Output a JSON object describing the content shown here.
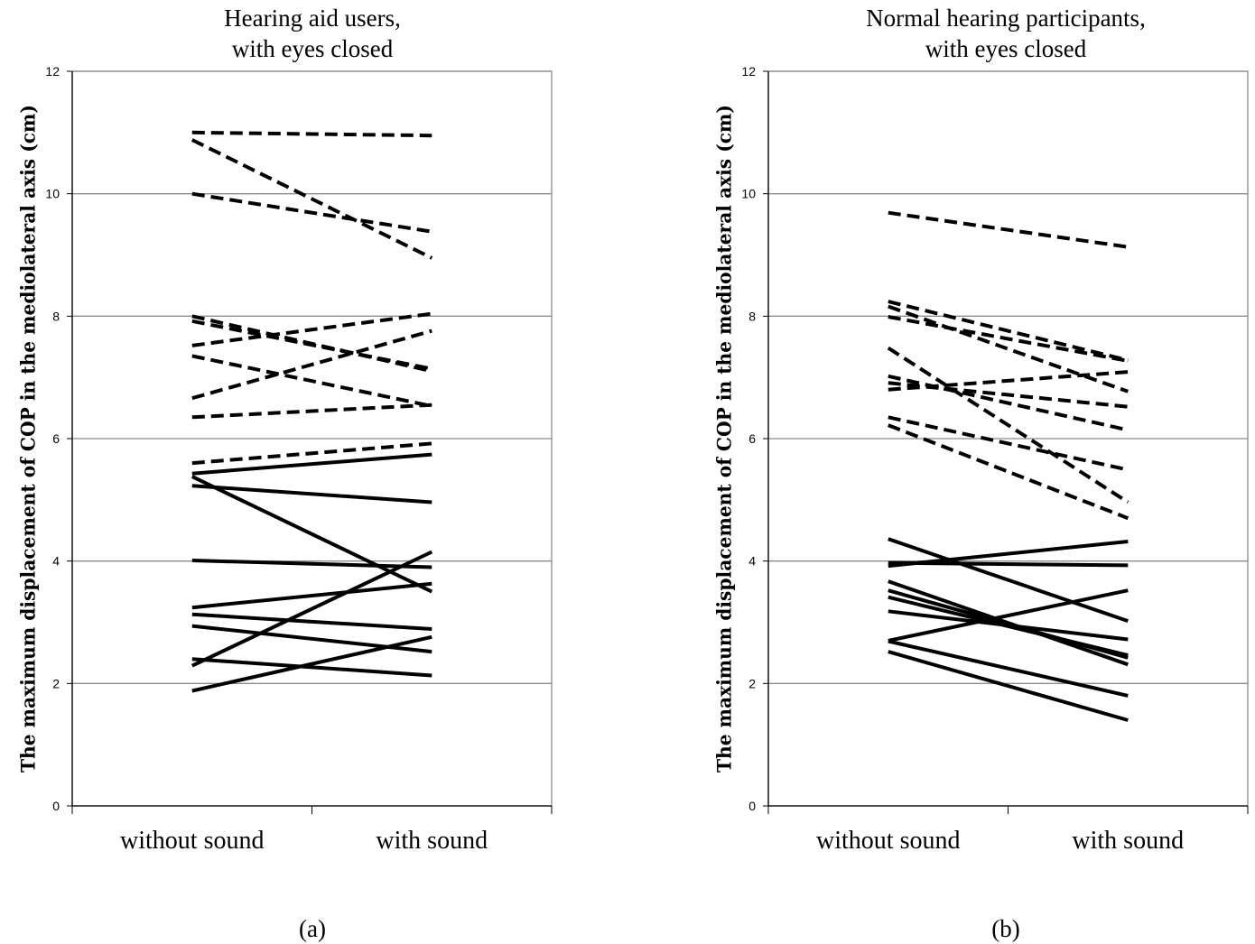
{
  "chart_data": [
    {
      "type": "line",
      "title": "Hearing aid users,\nwith eyes closed",
      "ylabel": "The maximum displacement of COP in the mediolateral axis (cm)",
      "xlabel": "",
      "categories": [
        "without sound",
        "with sound"
      ],
      "ylim": [
        0,
        12
      ],
      "yticks": [
        0,
        2,
        4,
        6,
        8,
        10,
        12
      ],
      "grid": true,
      "caption": "(a)",
      "series": [
        {
          "style": "dashed",
          "values": [
            11.0,
            10.95
          ]
        },
        {
          "style": "dashed",
          "values": [
            10.88,
            8.95
          ]
        },
        {
          "style": "dashed",
          "values": [
            10.0,
            9.38
          ]
        },
        {
          "style": "dashed",
          "values": [
            8.0,
            7.1
          ]
        },
        {
          "style": "dashed",
          "values": [
            7.92,
            7.14
          ]
        },
        {
          "style": "dashed",
          "values": [
            7.52,
            8.04
          ]
        },
        {
          "style": "dashed",
          "values": [
            7.35,
            6.53
          ]
        },
        {
          "style": "dashed",
          "values": [
            6.66,
            7.76
          ]
        },
        {
          "style": "dashed",
          "values": [
            6.35,
            6.55
          ]
        },
        {
          "style": "dashed",
          "values": [
            5.6,
            5.92
          ]
        },
        {
          "style": "solid",
          "values": [
            5.43,
            5.74
          ]
        },
        {
          "style": "solid",
          "values": [
            5.38,
            3.5
          ]
        },
        {
          "style": "solid",
          "values": [
            5.23,
            4.96
          ]
        },
        {
          "style": "solid",
          "values": [
            4.01,
            3.9
          ]
        },
        {
          "style": "solid",
          "values": [
            3.24,
            3.63
          ]
        },
        {
          "style": "solid",
          "values": [
            3.13,
            2.89
          ]
        },
        {
          "style": "solid",
          "values": [
            2.94,
            2.52
          ]
        },
        {
          "style": "solid",
          "values": [
            2.4,
            2.13
          ]
        },
        {
          "style": "solid",
          "values": [
            2.29,
            4.15
          ]
        },
        {
          "style": "solid",
          "values": [
            1.88,
            2.76
          ]
        }
      ]
    },
    {
      "type": "line",
      "title": "Normal hearing participants,\nwith eyes closed",
      "ylabel": "The maximum displacement of COP in the mediolateral axis (cm)",
      "xlabel": "",
      "categories": [
        "without sound",
        "with sound"
      ],
      "ylim": [
        0,
        12
      ],
      "yticks": [
        0,
        2,
        4,
        6,
        8,
        10,
        12
      ],
      "grid": true,
      "caption": "(b)",
      "series": [
        {
          "style": "dashed",
          "values": [
            9.69,
            9.13
          ]
        },
        {
          "style": "dashed",
          "values": [
            8.24,
            7.28
          ]
        },
        {
          "style": "dashed",
          "values": [
            8.16,
            6.77
          ]
        },
        {
          "style": "dashed",
          "values": [
            7.99,
            7.27
          ]
        },
        {
          "style": "dashed",
          "values": [
            7.48,
            4.96
          ]
        },
        {
          "style": "dashed",
          "values": [
            7.02,
            6.14
          ]
        },
        {
          "style": "dashed",
          "values": [
            6.91,
            6.52
          ]
        },
        {
          "style": "dashed",
          "values": [
            6.8,
            7.09
          ]
        },
        {
          "style": "dashed",
          "values": [
            6.35,
            5.49
          ]
        },
        {
          "style": "dashed",
          "values": [
            6.22,
            4.7
          ]
        },
        {
          "style": "solid",
          "values": [
            4.36,
            3.02
          ]
        },
        {
          "style": "solid",
          "values": [
            3.97,
            3.93
          ]
        },
        {
          "style": "solid",
          "values": [
            3.92,
            4.32
          ]
        },
        {
          "style": "solid",
          "values": [
            3.67,
            2.31
          ]
        },
        {
          "style": "solid",
          "values": [
            3.52,
            2.42
          ]
        },
        {
          "style": "solid",
          "values": [
            3.41,
            2.46
          ]
        },
        {
          "style": "solid",
          "values": [
            3.18,
            2.72
          ]
        },
        {
          "style": "solid",
          "values": [
            2.7,
            3.52
          ]
        },
        {
          "style": "solid",
          "values": [
            2.69,
            1.8
          ]
        },
        {
          "style": "solid",
          "values": [
            2.52,
            1.4
          ]
        }
      ]
    }
  ]
}
